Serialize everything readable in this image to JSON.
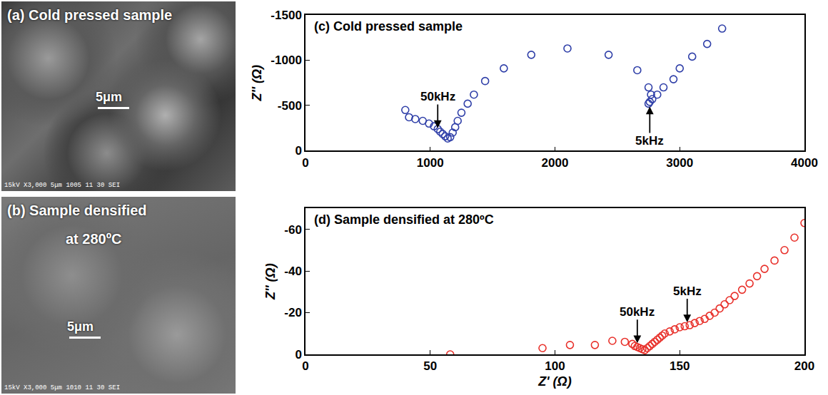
{
  "panels": [
    {
      "lines": [
        "(a) Cold pressed sample"
      ],
      "scale": "5μm",
      "footer": "15kV  X3,000  5μm  1005 11 30 SEI"
    },
    {
      "lines": [
        "(b) Sample densified",
        "at 280ºC"
      ],
      "scale": "5μm",
      "footer": "15kV  X3,000  5μm  1010 11 30 SEI"
    }
  ],
  "chart_data": [
    {
      "type": "scatter",
      "title": "(c) Cold pressed sample",
      "y_label": "Z'' (Ω)",
      "color": "#2f3fa8",
      "marker": "circle-open",
      "x": [
        800,
        830,
        880,
        940,
        990,
        1030,
        1060,
        1080,
        1100,
        1120,
        1140,
        1160,
        1180,
        1200,
        1220,
        1250,
        1300,
        1350,
        1440,
        1590,
        1810,
        2100,
        2430,
        2660,
        2750,
        2770,
        2760,
        2750,
        2780,
        2820,
        2870,
        2950,
        3000,
        3100,
        3220,
        3340
      ],
      "values": [
        -450,
        -370,
        -350,
        -330,
        -300,
        -270,
        -240,
        -210,
        -185,
        -160,
        -135,
        -150,
        -200,
        -260,
        -330,
        -420,
        -520,
        -620,
        -770,
        -910,
        -1060,
        -1130,
        -1060,
        -890,
        -700,
        -620,
        -540,
        -520,
        -570,
        -620,
        -700,
        -790,
        -910,
        -1040,
        -1180,
        -1350
      ],
      "xlim": [
        0,
        4000
      ],
      "ylim": [
        0,
        -1500
      ],
      "xticks": [
        0,
        1000,
        2000,
        3000,
        4000
      ],
      "yticks": [
        -1500,
        -1000,
        -500,
        0
      ],
      "annotations": [
        {
          "text": "50kHz",
          "x": 1060,
          "y": -220,
          "side": "above"
        },
        {
          "text": "5kHz",
          "x": 2760,
          "y": -520,
          "side": "below"
        }
      ]
    },
    {
      "type": "scatter",
      "title": "(d) Sample densified at 280ºC",
      "x_label": "Z' (Ω)",
      "y_label": "Z'' (Ω)",
      "color": "#e8302a",
      "marker": "circle-open",
      "x": [
        58,
        95,
        106,
        116,
        123,
        128,
        131,
        132,
        133,
        134,
        135,
        136,
        137,
        138,
        139,
        140,
        141,
        142,
        143,
        144,
        146,
        148,
        150,
        152,
        154,
        156,
        158,
        160,
        162,
        164,
        166,
        168,
        170,
        172,
        175,
        178,
        181,
        184,
        188,
        192,
        196,
        200
      ],
      "values": [
        0,
        -3,
        -4.5,
        -4.5,
        -6.5,
        -6,
        -5,
        -4,
        -3.5,
        -3,
        -2.5,
        -2,
        -3,
        -4,
        -5,
        -6,
        -7,
        -8,
        -9,
        -10,
        -11,
        -12,
        -13,
        -13.5,
        -14,
        -15,
        -16,
        -17,
        -18.5,
        -20,
        -22,
        -24,
        -26,
        -28,
        -31,
        -34,
        -37.5,
        -41,
        -45,
        -50,
        -56,
        -63
      ],
      "xlim": [
        0,
        200
      ],
      "ylim": [
        0,
        -70
      ],
      "xticks": [
        0,
        50,
        100,
        150,
        200
      ],
      "yticks": [
        -60,
        -40,
        -20,
        0
      ],
      "annotations": [
        {
          "text": "50kHz",
          "x": 133,
          "y": -4,
          "side": "above"
        },
        {
          "text": "5kHz",
          "x": 153,
          "y": -14,
          "side": "above"
        }
      ]
    }
  ]
}
